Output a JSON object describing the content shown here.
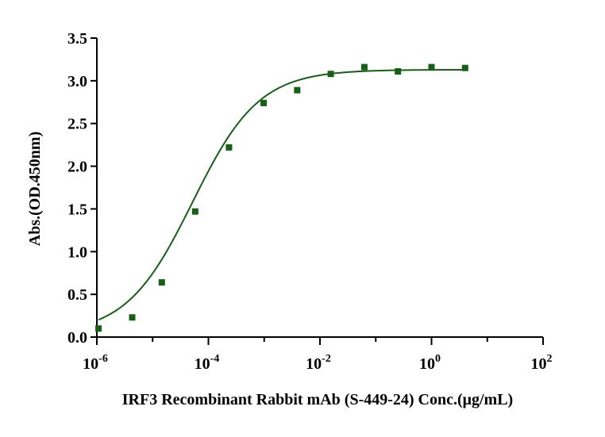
{
  "chart_data": {
    "type": "scatter",
    "xlabel": "IRF3 Recombinant Rabbit mAb (S-449-24) Conc.(μg/mL)",
    "ylabel": "Abs.(OD.450nm)",
    "x_scale": "log10",
    "xlim": [
      1e-06,
      100
    ],
    "ylim": [
      0,
      3.5
    ],
    "grid": false,
    "legend": "none",
    "x_ticks": [
      {
        "base": "10",
        "exp": "-6",
        "value": 1e-06
      },
      {
        "base": "10",
        "exp": "-4",
        "value": 0.0001
      },
      {
        "base": "10",
        "exp": "-2",
        "value": 0.01
      },
      {
        "base": "10",
        "exp": "0",
        "value": 1
      },
      {
        "base": "10",
        "exp": "2",
        "value": 100
      }
    ],
    "y_ticks": [
      "0.0",
      "0.5",
      "1.0",
      "1.5",
      "2.0",
      "2.5",
      "3.0",
      "3.5"
    ],
    "color": "#156015",
    "series": [
      {
        "x": [
          1.07e-06,
          4.3e-06,
          1.46e-05,
          5.79e-05,
          0.000234,
          0.000977,
          0.00391,
          0.01563,
          0.0625,
          0.25,
          1.0,
          4.0
        ],
        "y": [
          0.1,
          0.23,
          0.64,
          1.47,
          2.22,
          2.74,
          2.89,
          3.08,
          3.16,
          3.11,
          3.16,
          3.15
        ]
      }
    ],
    "fit": {
      "model": "4PL",
      "bottom": 0.03,
      "top": 3.13,
      "ec50": 5.2e-05,
      "hill": 0.73
    }
  }
}
